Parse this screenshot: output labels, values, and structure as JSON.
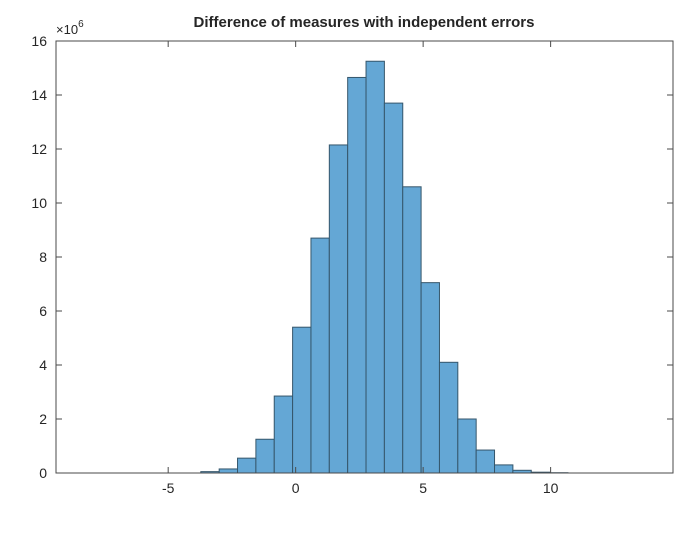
{
  "figure": {
    "title": "Difference of measures with independent errors",
    "y_exponent_base": "×10",
    "y_exponent_power": "6"
  },
  "chart_data": {
    "type": "bar",
    "subtype": "histogram",
    "title": "Difference of measures with independent errors",
    "xlabel": "",
    "ylabel": "",
    "y_scale_label": "×10^6",
    "xlim": [
      -9.4,
      14.8
    ],
    "ylim": [
      0,
      16000000
    ],
    "x_ticks": [
      -5,
      0,
      5,
      10
    ],
    "y_ticks": [
      0,
      2,
      4,
      6,
      8,
      10,
      12,
      14,
      16
    ],
    "y_tick_unit": 1000000,
    "grid": false,
    "legend_position": "none",
    "bin_edges": [
      -3.72,
      -3.0,
      -2.28,
      -1.56,
      -0.84,
      -0.12,
      0.6,
      1.32,
      2.04,
      2.76,
      3.48,
      4.2,
      4.92,
      5.64,
      6.36,
      7.08,
      7.8,
      8.52,
      9.24,
      9.96,
      10.68
    ],
    "counts_millions": [
      0.05,
      0.15,
      0.55,
      1.25,
      2.85,
      5.4,
      8.7,
      12.15,
      14.65,
      15.25,
      13.7,
      10.6,
      7.05,
      4.1,
      2.0,
      0.85,
      0.3,
      0.1,
      0.03,
      0.01
    ],
    "bar_fill": "#64A7D5",
    "bar_edge": "#35566B",
    "axis_line_color": "#4a4a4a",
    "text_color": "#262626",
    "background_color": "#ffffff"
  }
}
